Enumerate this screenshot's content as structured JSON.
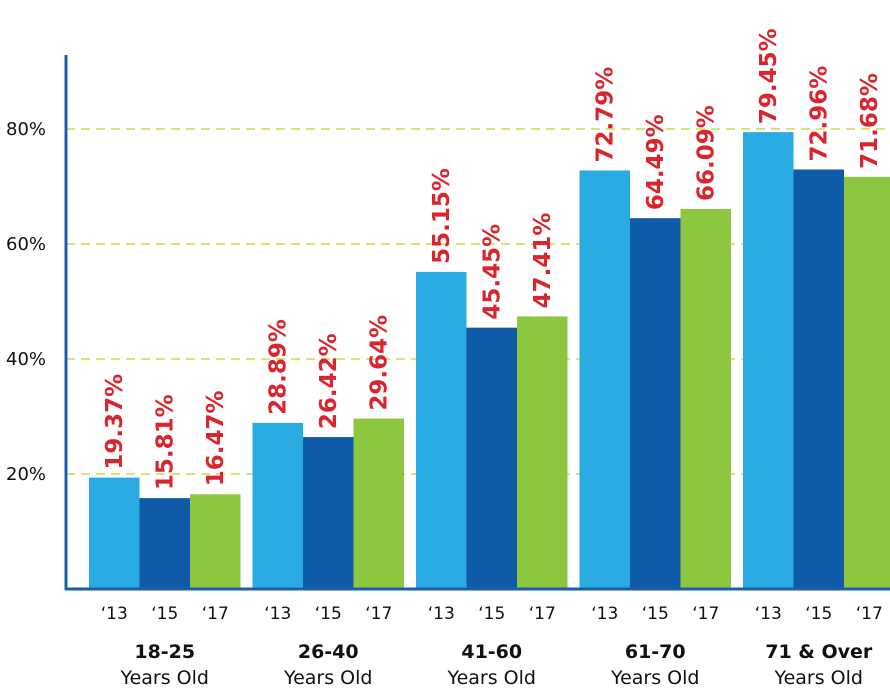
{
  "chart_data": {
    "type": "bar",
    "groups": [
      {
        "title": "18-25",
        "subtitle": "Years Old"
      },
      {
        "title": "26-40",
        "subtitle": "Years Old"
      },
      {
        "title": "41-60",
        "subtitle": "Years Old"
      },
      {
        "title": "61-70",
        "subtitle": "Years Old"
      },
      {
        "title": "71 & Over",
        "subtitle": "Years Old"
      }
    ],
    "series_labels": [
      "‘13",
      "‘15",
      "‘17"
    ],
    "series": [
      {
        "values": [
          19.37,
          28.89,
          55.15,
          72.79,
          79.45
        ],
        "labels": [
          "19.37%",
          "28.89%",
          "55.15%",
          "72.79%",
          "79.45%"
        ],
        "color": "#29abe2"
      },
      {
        "values": [
          15.81,
          26.42,
          45.45,
          64.49,
          72.96
        ],
        "labels": [
          "15.81%",
          "26.42%",
          "45.45%",
          "64.49%",
          "72.96%"
        ],
        "color": "#0f5ba8"
      },
      {
        "values": [
          16.47,
          29.64,
          47.41,
          66.09,
          71.68
        ],
        "labels": [
          "16.47%",
          "29.64%",
          "47.41%",
          "66.09%",
          "71.68%"
        ],
        "color": "#8dc63f"
      }
    ],
    "y_ticks": [
      20,
      40,
      60,
      80
    ],
    "y_tick_labels": [
      "20%",
      "40%",
      "60%",
      "80%"
    ],
    "ylim": [
      0,
      90
    ],
    "grid": true,
    "grid_color": "#c8dc4b",
    "axis_color": "#1a5fa8",
    "label_color": "#d9262e"
  }
}
